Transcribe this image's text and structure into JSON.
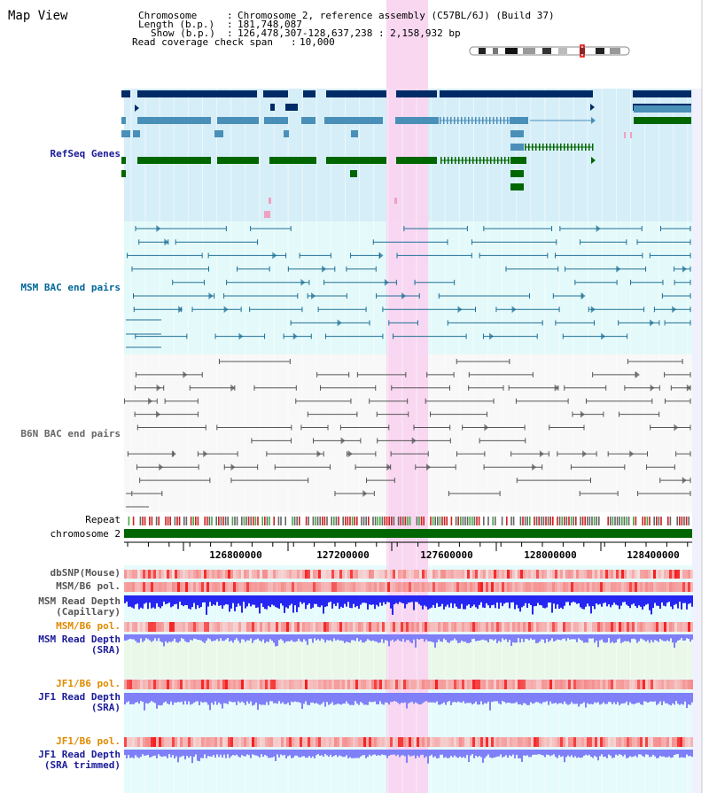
{
  "app_title": "Map View",
  "header": {
    "chromosome_key": "Chromosome",
    "chromosome_val": "Chromosome 2, reference assembly (C57BL/6J) (Build 37)",
    "length_key": "Length (b.p.)",
    "length_val": "181,748,087",
    "show_key": "Show (b.p.)",
    "show_val": "126,478,307-128,637,238 : 2,158,932 bp",
    "coverage_key": "Read coverage check span",
    "coverage_val": "10,000"
  },
  "tracks": {
    "refseq": "RefSeq Genes",
    "msm_bac": "MSM BAC end pairs",
    "b6n_bac": "B6N BAC end pairs",
    "repeat": "Repeat",
    "chromosome": "chromosome 2",
    "dbsnp": "dbSNP(Mouse)",
    "msm_b6_pol_1": "MSM/B6 pol.",
    "msm_read_depth_cap": "MSM Read Depth\n(Capillary)",
    "msm_b6_pol_2": "MSM/B6 pol.",
    "msm_read_depth_sra": "MSM Read Depth\n(SRA)",
    "jf1_b6_pol_1": "JF1/B6 pol.",
    "jf1_read_depth_sra": "JF1 Read Depth\n(SRA)",
    "jf1_b6_pol_2": "JF1/B6 pol.",
    "jf1_read_depth_trim": "JF1 Read Depth\n(SRA trimmed)"
  },
  "axis": {
    "ticks": [
      "126800000",
      "127200000",
      "127600000",
      "128000000",
      "128400000"
    ]
  },
  "colors": {
    "refseq_dark": "#002b66",
    "refseq_mid": "#4a8fb8",
    "refseq_green": "#006600",
    "refseq_bg": "#d6eef8",
    "msm_bg": "#e4fafa",
    "msm_feature": "#1f6f96",
    "b6n_feature": "#555555",
    "highlight": "#f8d4f0",
    "chromosome_bar": "#006600",
    "depth_blue": "#2626f2",
    "depth_light_blue": "#7f7ff8",
    "label_navy": "#1a1a99",
    "label_orange": "#e08a00",
    "label_teal": "#006699"
  }
}
